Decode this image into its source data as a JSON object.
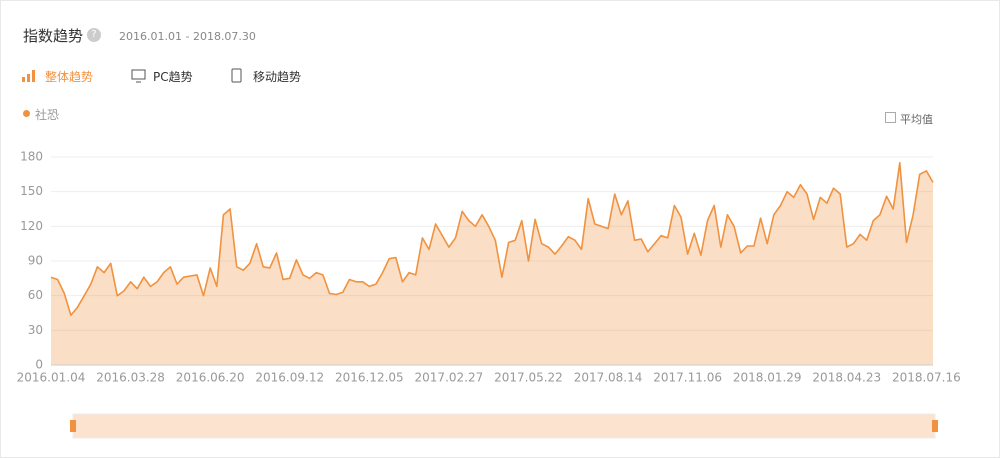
{
  "header": {
    "title": "指数趋势",
    "date_range": "2016.01.01 - 2018.07.30"
  },
  "tabs": [
    "整体趋势",
    "PC趋势",
    "移动趋势"
  ],
  "average_toggle": "平均值",
  "chart_data": {
    "type": "area",
    "categories": [
      "2016.01.04",
      null,
      null,
      null,
      null,
      null,
      null,
      null,
      null,
      null,
      null,
      null,
      "2016.03.28",
      null,
      null,
      null,
      null,
      null,
      null,
      null,
      null,
      null,
      null,
      null,
      "2016.06.20",
      null,
      null,
      null,
      null,
      null,
      null,
      null,
      null,
      null,
      null,
      null,
      "2016.09.12",
      null,
      null,
      null,
      null,
      null,
      null,
      null,
      null,
      null,
      null,
      null,
      "2016.12.05",
      null,
      null,
      null,
      null,
      null,
      null,
      null,
      null,
      null,
      null,
      null,
      "2017.02.27",
      null,
      null,
      null,
      null,
      null,
      null,
      null,
      null,
      null,
      null,
      null,
      "2017.05.22",
      null,
      null,
      null,
      null,
      null,
      null,
      null,
      null,
      null,
      null,
      null,
      "2017.08.14",
      null,
      null,
      null,
      null,
      null,
      null,
      null,
      null,
      null,
      null,
      null,
      "2017.11.06",
      null,
      null,
      null,
      null,
      null,
      null,
      null,
      null,
      null,
      null,
      null,
      "2018.01.29",
      null,
      null,
      null,
      null,
      null,
      null,
      null,
      null,
      null,
      null,
      null,
      "2018.04.23",
      null,
      null,
      null,
      null,
      null,
      null,
      null,
      null,
      null,
      null,
      null,
      "2018.07.16",
      null
    ],
    "series": [
      {
        "name": "社恐",
        "color": "#f0923f",
        "values": [
          76,
          74,
          62,
          43,
          50,
          60,
          70,
          85,
          80,
          88,
          60,
          64,
          72,
          66,
          76,
          68,
          72,
          80,
          85,
          70,
          76,
          77,
          78,
          60,
          84,
          68,
          130,
          135,
          85,
          82,
          88,
          105,
          85,
          84,
          97,
          74,
          75,
          91,
          78,
          75,
          80,
          78,
          62,
          61,
          63,
          74,
          72,
          72,
          68,
          70,
          80,
          92,
          93,
          72,
          80,
          78,
          110,
          100,
          122,
          112,
          102,
          110,
          133,
          125,
          120,
          130,
          120,
          108,
          76,
          106,
          108,
          125,
          90,
          126,
          105,
          102,
          96,
          103,
          111,
          108,
          100,
          144,
          122,
          120,
          118,
          148,
          130,
          142,
          108,
          109,
          98,
          105,
          112,
          110,
          138,
          128,
          96,
          114,
          95,
          125,
          138,
          102,
          130,
          120,
          97,
          103,
          103,
          127,
          105,
          130,
          138,
          150,
          145,
          156,
          148,
          126,
          145,
          140,
          153,
          148,
          102,
          105,
          113,
          108,
          125,
          130,
          146,
          135,
          175,
          106,
          130,
          165,
          168,
          158
        ]
      }
    ],
    "ylim": [
      0,
      180
    ],
    "yticks": [
      0,
      30,
      60,
      90,
      120,
      150,
      180
    ],
    "grid": true
  }
}
